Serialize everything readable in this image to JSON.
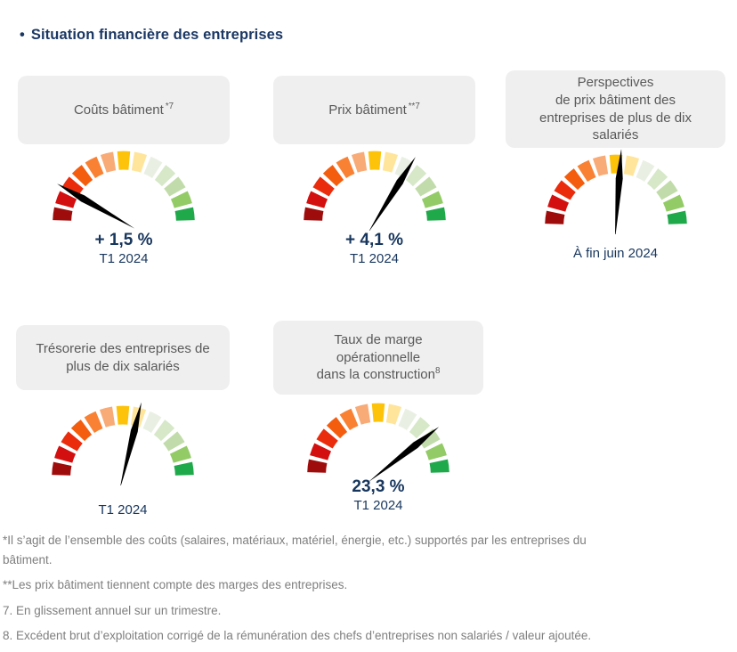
{
  "page": {
    "title_bullet": "•",
    "title": "Situation financière des entreprises"
  },
  "colors": {
    "navy_text": "#17365d",
    "title_navy": "#1b3764",
    "card_background": "#efefef",
    "card_text_gray": "#595959",
    "footnote_gray": "#7f7f7f"
  },
  "gauge": {
    "needle_color": "#000000",
    "segment_colors": [
      "#9f0c0c",
      "#d40f0f",
      "#ea2c0d",
      "#f45d0e",
      "#f98133",
      "#f8ab76",
      "#fdc30b",
      "#ffe59c",
      "#e9f0e3",
      "#d6e8c8",
      "#c1dcaa",
      "#93cb66",
      "#1fa94a"
    ]
  },
  "cards": [
    {
      "title": "Coûts bâtiment",
      "sup": "*7",
      "value": "+ 1,5 %",
      "caption": "T1 2024",
      "needle_angle_deg": 150
    },
    {
      "title": "Prix bâtiment",
      "sup": "**7",
      "value": "+ 4,1 %",
      "caption": "T1 2024",
      "needle_angle_deg": 58
    },
    {
      "title_lines": [
        "Perspectives",
        "de prix bâtiment des",
        "entreprises de plus de dix",
        "salariés"
      ],
      "sup": "",
      "value": "",
      "caption": "À fin juin 2024",
      "needle_angle_deg": 86
    },
    {
      "title_lines": [
        "Trésorerie des entreprises de",
        "plus de dix salariés"
      ],
      "sup": "",
      "value": "",
      "caption": "T1 2024",
      "needle_angle_deg": 76
    },
    {
      "title_lines": [
        "Taux de marge",
        "opérationnelle",
        "dans la construction"
      ],
      "sup": "8",
      "value": "23,3 %",
      "caption": "T1 2024",
      "needle_angle_deg": 38
    }
  ],
  "footnotes": [
    "*Il s’agit de l’ensemble des coûts (salaires, matériaux, matériel, énergie, etc.) supportés par les entreprises du bâtiment.",
    "**Les prix bâtiment tiennent compte des marges des entreprises.",
    "7. En glissement annuel sur un trimestre.",
    "8. Excédent brut d’exploitation corrigé de la rémunération des chefs d’entreprises non salariés / valeur ajoutée."
  ],
  "chart_data": [
    {
      "type": "gauge",
      "title": "Coûts bâtiment *7",
      "value_label": "+ 1,5 %",
      "period": "T1 2024",
      "needle_angle_deg": 150,
      "needle_position_0to1_left_to_right": 0.17,
      "scale": "13-segment semicircular dial from dark red (left/bad) to green (right/good)"
    },
    {
      "type": "gauge",
      "title": "Prix bâtiment **7",
      "value_label": "+ 4,1 %",
      "period": "T1 2024",
      "needle_angle_deg": 58,
      "needle_position_0to1_left_to_right": 0.68,
      "scale": "13-segment semicircular dial from dark red (left/bad) to green (right/good)"
    },
    {
      "type": "gauge",
      "title": "Perspectives de prix bâtiment des entreprises de plus de dix salariés",
      "value_label": "",
      "period": "À fin juin 2024",
      "needle_angle_deg": 86,
      "needle_position_0to1_left_to_right": 0.52,
      "scale": "13-segment semicircular dial from dark red (left/bad) to green (right/good)"
    },
    {
      "type": "gauge",
      "title": "Trésorerie des entreprises de plus de dix salariés",
      "value_label": "",
      "period": "T1 2024",
      "needle_angle_deg": 76,
      "needle_position_0to1_left_to_right": 0.58,
      "scale": "13-segment semicircular dial from dark red (left/bad) to green (right/good)"
    },
    {
      "type": "gauge",
      "title": "Taux de marge opérationnelle dans la construction 8",
      "value_label": "23,3 %",
      "period": "T1 2024",
      "needle_angle_deg": 38,
      "needle_position_0to1_left_to_right": 0.79,
      "scale": "13-segment semicircular dial from dark red (left/bad) to green (right/good)"
    }
  ]
}
